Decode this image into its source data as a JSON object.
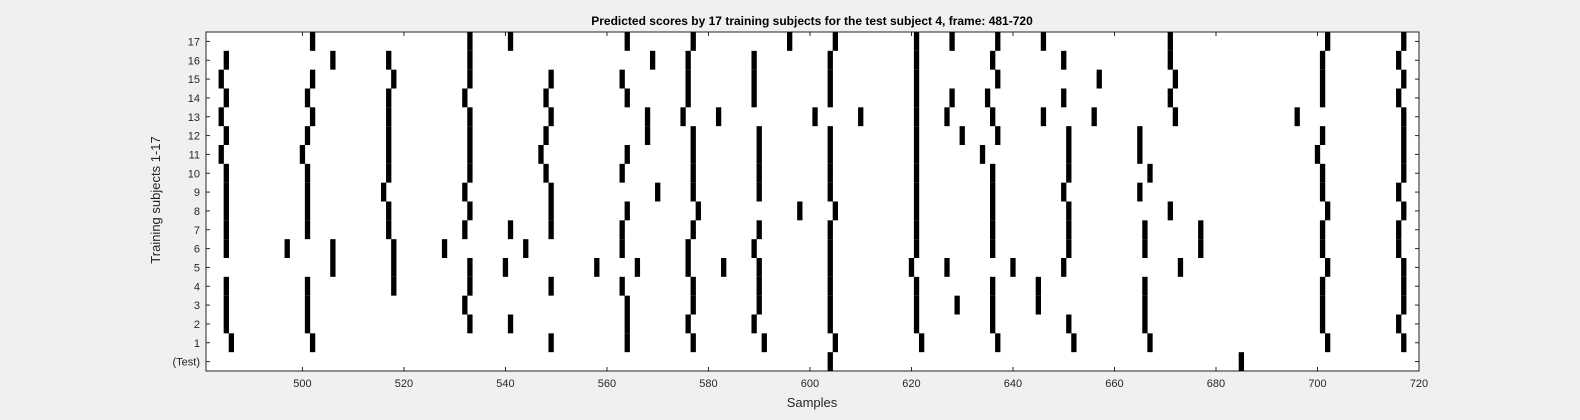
{
  "chart_data": {
    "type": "scatter",
    "title": "Predicted scores by 17 training subjects for the test subject 4, frame: 481-720",
    "xlabel": "Samples",
    "ylabel": "Training subjects 1-17",
    "xlim": [
      481,
      720
    ],
    "xticks": [
      500,
      520,
      540,
      560,
      580,
      600,
      620,
      640,
      660,
      680,
      700,
      720
    ],
    "ytick_labels": [
      "(Test)",
      "1",
      "2",
      "3",
      "4",
      "5",
      "6",
      "7",
      "8",
      "9",
      "10",
      "11",
      "12",
      "13",
      "14",
      "15",
      "16",
      "17"
    ],
    "grid": false,
    "rows": [
      {
        "label": "(Test)",
        "x": [
          604,
          685
        ]
      },
      {
        "label": "1",
        "x": [
          486,
          502,
          549,
          564,
          577,
          591,
          605,
          622,
          637,
          652,
          667,
          702,
          717
        ]
      },
      {
        "label": "2",
        "x": [
          485,
          501,
          533,
          541,
          564,
          576,
          589,
          604,
          621,
          636,
          651,
          666,
          701,
          716
        ]
      },
      {
        "label": "3",
        "x": [
          485,
          501,
          532,
          564,
          577,
          590,
          604,
          621,
          629,
          636,
          645,
          666,
          701,
          717
        ]
      },
      {
        "label": "4",
        "x": [
          485,
          501,
          518,
          533,
          549,
          563,
          577,
          590,
          604,
          621,
          636,
          645,
          666,
          701,
          717
        ]
      },
      {
        "label": "5",
        "x": [
          506,
          518,
          533,
          540,
          558,
          566,
          576,
          583,
          590,
          604,
          620,
          627,
          640,
          650,
          673,
          702,
          717
        ]
      },
      {
        "label": "6",
        "x": [
          485,
          497,
          506,
          518,
          528,
          544,
          563,
          576,
          589,
          604,
          621,
          636,
          651,
          666,
          677,
          701,
          716
        ]
      },
      {
        "label": "7",
        "x": [
          485,
          501,
          517,
          532,
          541,
          549,
          563,
          577,
          590,
          604,
          621,
          636,
          651,
          666,
          677,
          701,
          716
        ]
      },
      {
        "label": "8",
        "x": [
          485,
          501,
          517,
          533,
          549,
          564,
          578,
          598,
          605,
          621,
          636,
          651,
          671,
          702,
          717
        ]
      },
      {
        "label": "9",
        "x": [
          485,
          501,
          516,
          532,
          549,
          570,
          577,
          590,
          604,
          621,
          636,
          650,
          665,
          701,
          716
        ]
      },
      {
        "label": "10",
        "x": [
          485,
          501,
          517,
          533,
          548,
          563,
          577,
          590,
          604,
          621,
          636,
          651,
          667,
          701,
          717
        ]
      },
      {
        "label": "11",
        "x": [
          484,
          500,
          517,
          533,
          547,
          564,
          577,
          590,
          604,
          621,
          634,
          651,
          665,
          700,
          717
        ]
      },
      {
        "label": "12",
        "x": [
          485,
          501,
          517,
          533,
          548,
          568,
          577,
          590,
          604,
          621,
          630,
          637,
          651,
          665,
          701,
          717
        ]
      },
      {
        "label": "13",
        "x": [
          484,
          502,
          517,
          533,
          549,
          568,
          575,
          582,
          601,
          610,
          621,
          627,
          636,
          646,
          656,
          672,
          696,
          717
        ]
      },
      {
        "label": "14",
        "x": [
          485,
          501,
          517,
          532,
          548,
          564,
          576,
          589,
          604,
          621,
          628,
          635,
          650,
          671,
          701,
          716
        ]
      },
      {
        "label": "15",
        "x": [
          484,
          502,
          518,
          533,
          549,
          563,
          576,
          589,
          604,
          621,
          637,
          657,
          672,
          701,
          717
        ]
      },
      {
        "label": "16",
        "x": [
          485,
          506,
          517,
          533,
          569,
          576,
          589,
          604,
          621,
          636,
          650,
          671,
          701,
          716
        ]
      },
      {
        "label": "17",
        "x": [
          502,
          533,
          541,
          564,
          577,
          596,
          605,
          621,
          628,
          637,
          646,
          671,
          702,
          717
        ]
      }
    ]
  }
}
